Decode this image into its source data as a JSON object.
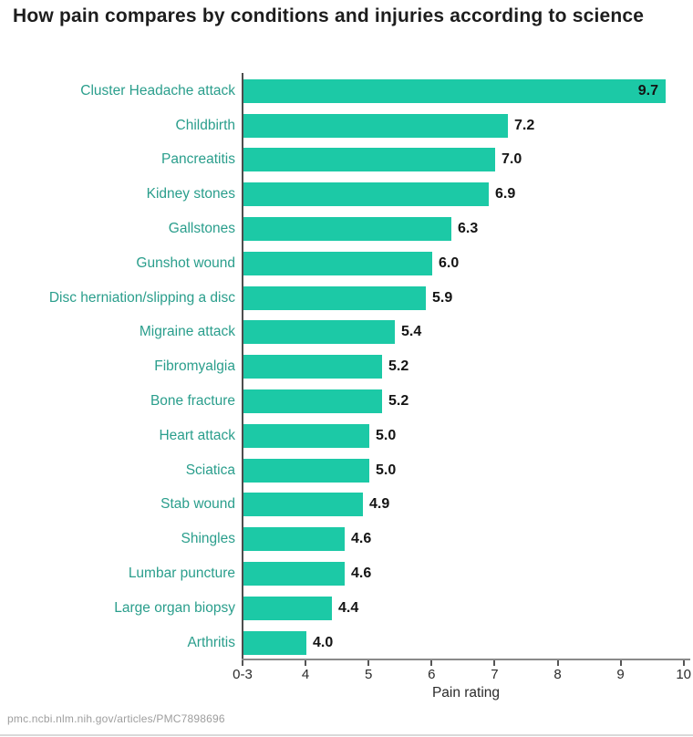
{
  "title": "How pain compares by conditions and injuries according to science",
  "footer": "pmc.ncbi.nlm.nih.gov/articles/PMC7898696",
  "chart_data": {
    "type": "bar",
    "orientation": "horizontal",
    "title": "How pain compares by conditions and injuries according to science",
    "xlabel": "Pain rating",
    "ylabel": "",
    "categories": [
      "Cluster Headache attack",
      "Childbirth",
      "Pancreatitis",
      "Kidney stones",
      "Gallstones",
      "Gunshot wound",
      "Disc herniation/slipping a disc",
      "Migraine attack",
      "Fibromyalgia",
      "Bone fracture",
      "Heart attack",
      "Sciatica",
      "Stab wound",
      "Shingles",
      "Lumbar puncture",
      "Large organ biopsy",
      "Arthritis"
    ],
    "values": [
      9.7,
      7.2,
      7.0,
      6.9,
      6.3,
      6.0,
      5.9,
      5.4,
      5.2,
      5.2,
      5.0,
      5.0,
      4.9,
      4.6,
      4.6,
      4.4,
      4.0
    ],
    "value_labels": [
      "9.7",
      "7.2",
      "7.0",
      "6.9",
      "6.3",
      "6.0",
      "5.9",
      "5.4",
      "5.2",
      "5.2",
      "5.0",
      "5.0",
      "4.9",
      "4.6",
      "4.6",
      "4.4",
      "4.0"
    ],
    "value_label_inside_index": 0,
    "x_ticks": [
      {
        "label": "0-3",
        "value": 3
      },
      {
        "label": "4",
        "value": 4
      },
      {
        "label": "5",
        "value": 5
      },
      {
        "label": "6",
        "value": 6
      },
      {
        "label": "7",
        "value": 7
      },
      {
        "label": "8",
        "value": 8
      },
      {
        "label": "9",
        "value": 9
      },
      {
        "label": "10",
        "value": 10
      }
    ],
    "xlim": [
      3,
      10
    ],
    "grid": false,
    "legend": "none",
    "bar_color": "#1cc9a6",
    "category_label_color": "#2a9e8c",
    "value_label_color": "#141414",
    "footer_color": "#9e9e9e"
  }
}
